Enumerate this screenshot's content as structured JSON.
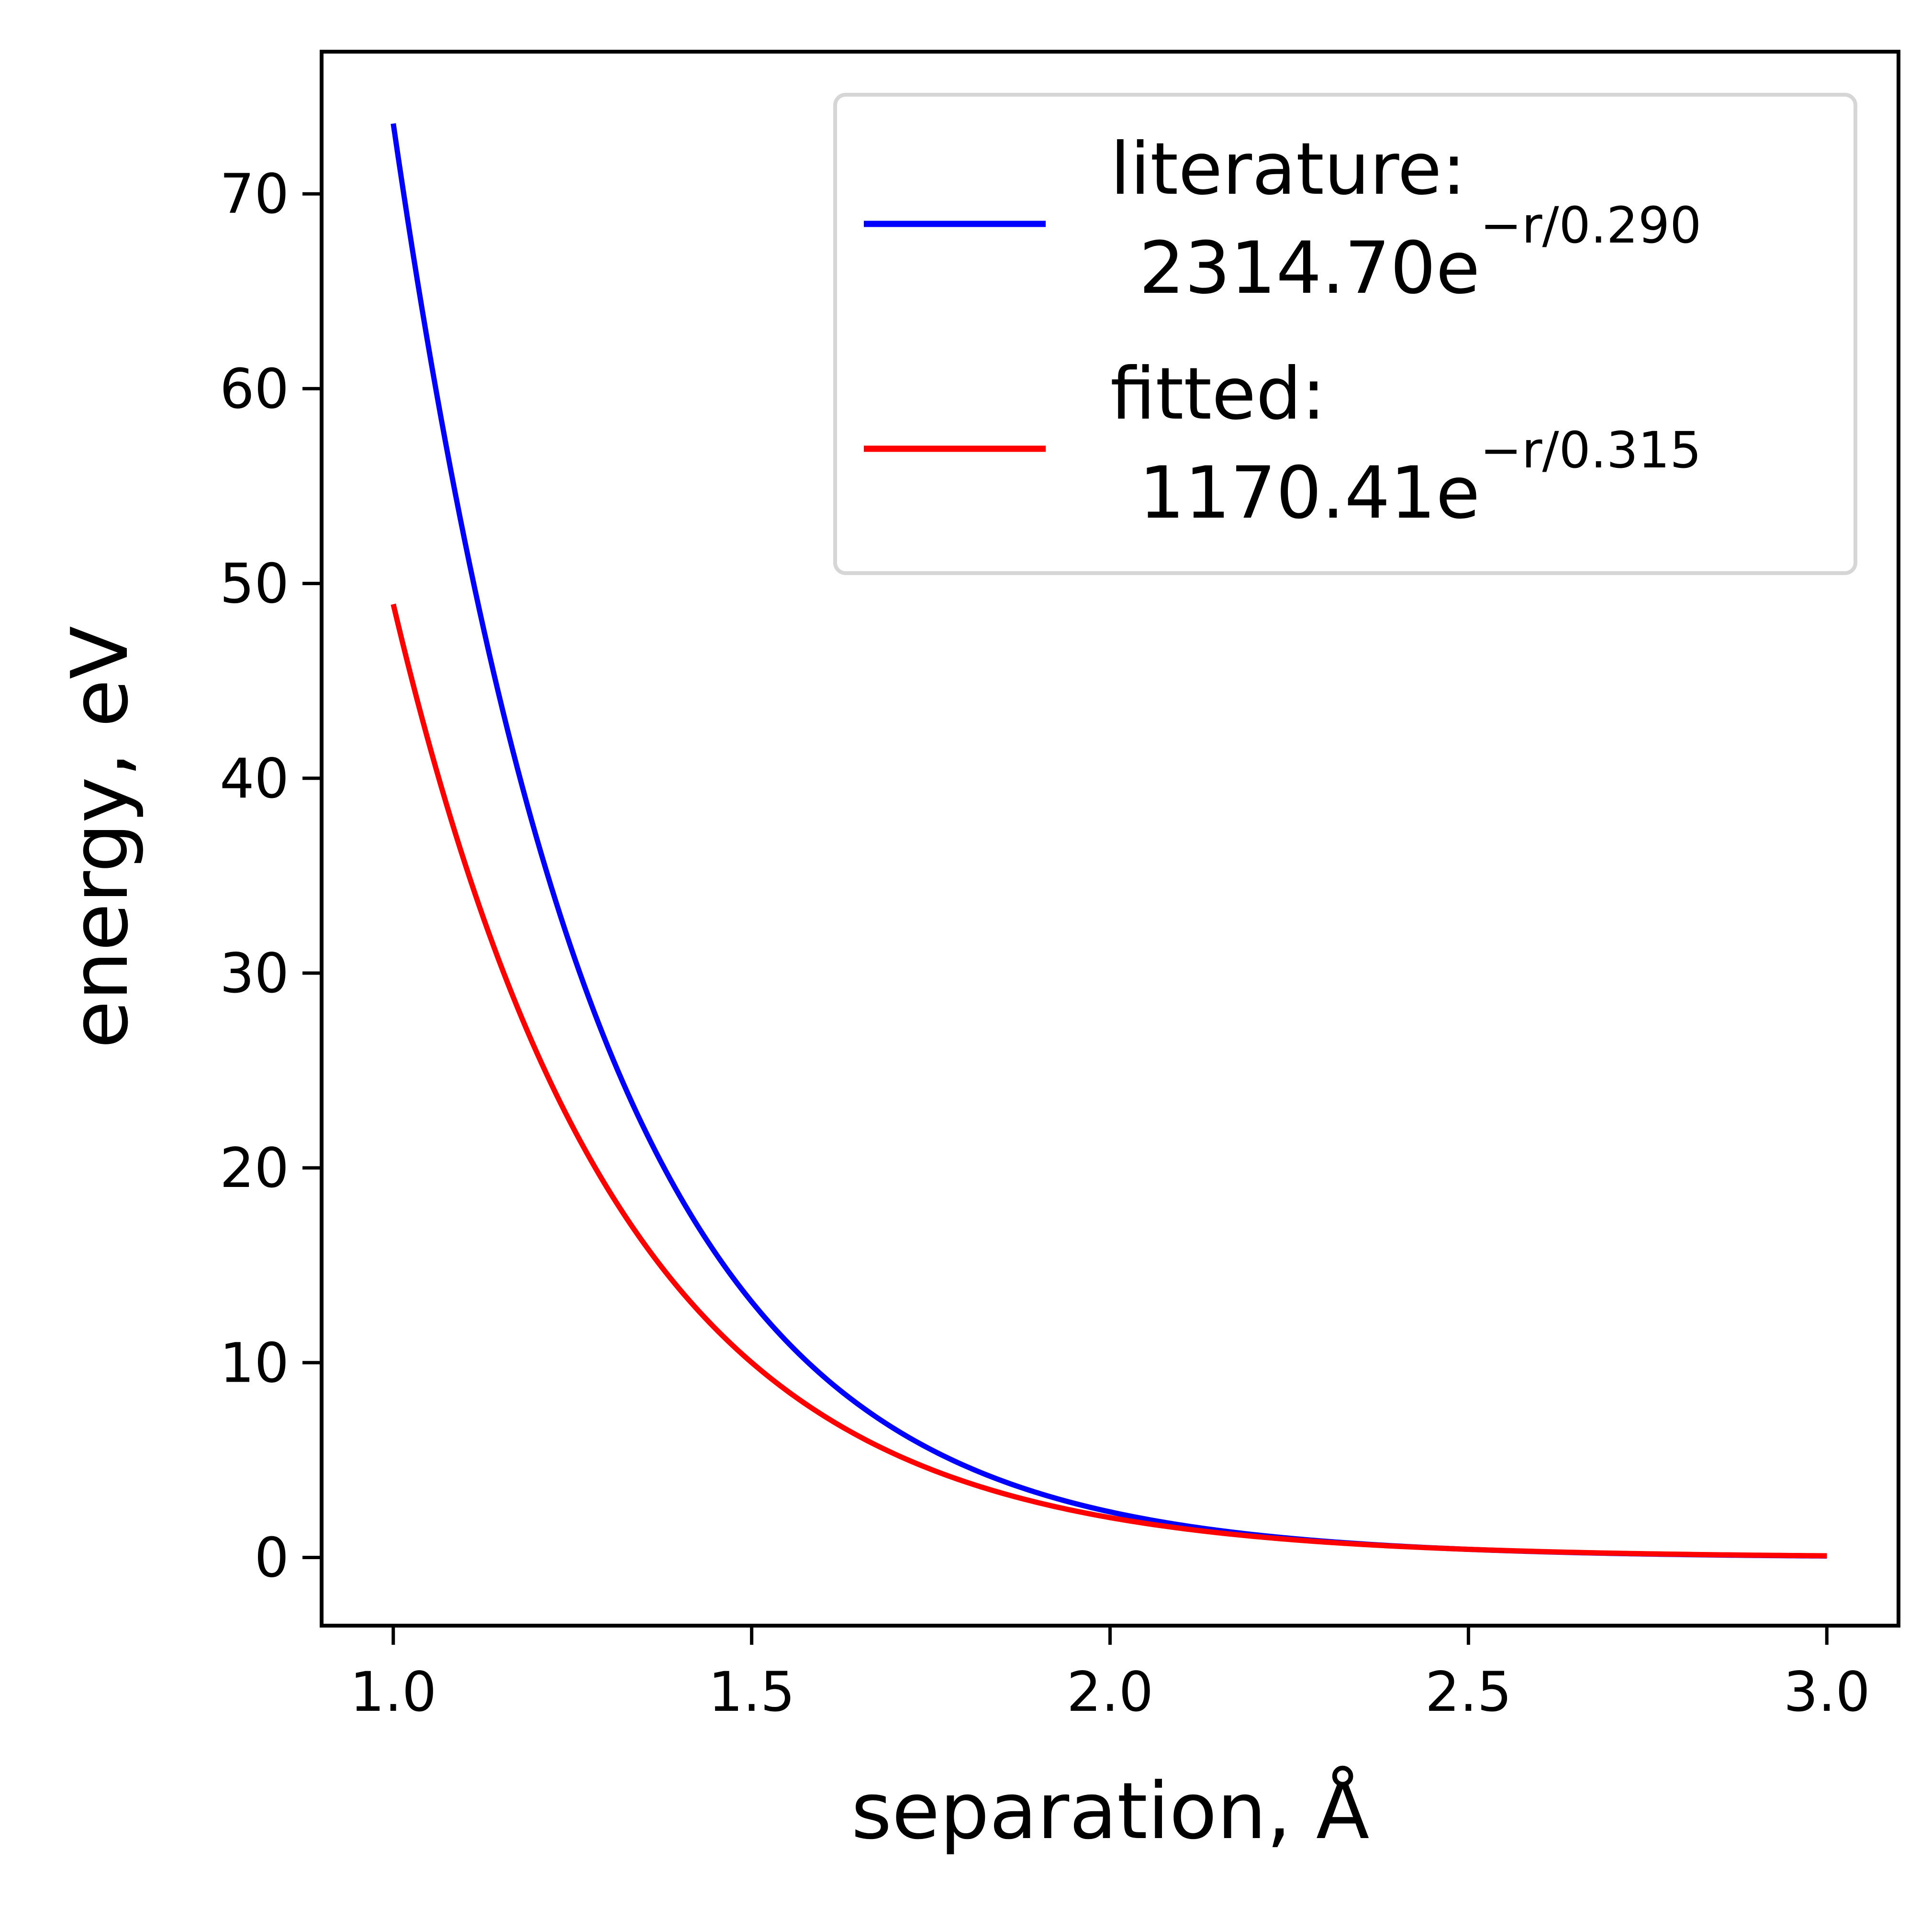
{
  "chart_data": {
    "type": "line",
    "xlabel": "separation, Å",
    "ylabel": "energy, eV",
    "xlim": [
      0.9,
      3.1
    ],
    "ylim": [
      -3.5,
      77.3
    ],
    "xticks": [
      1.0,
      1.5,
      2.0,
      2.5,
      3.0
    ],
    "xtick_labels": [
      "1.0",
      "1.5",
      "2.0",
      "2.5",
      "3.0"
    ],
    "yticks": [
      0,
      10,
      20,
      30,
      40,
      50,
      60,
      70
    ],
    "ytick_labels": [
      "0",
      "10",
      "20",
      "30",
      "40",
      "50",
      "60",
      "70"
    ],
    "grid": false,
    "legend_position": "top-right",
    "series": [
      {
        "name": "literature:",
        "formula_coefficient": "2314.70e",
        "formula_exponent": "−r/0.290",
        "color": "#0000ff",
        "model": "exponential",
        "amplitude": 2314.7,
        "decay": 0.29,
        "x_range": [
          1.0,
          3.0
        ],
        "x": [
          1.0,
          1.25,
          1.5,
          1.75,
          2.0,
          2.25,
          2.5,
          2.75,
          3.0
        ],
        "y": [
          73.5,
          31.9,
          13.8,
          6.0,
          2.6,
          1.1,
          0.5,
          0.2,
          0.1
        ]
      },
      {
        "name": "fitted:",
        "formula_coefficient": "1170.41e",
        "formula_exponent": "−r/0.315",
        "color": "#ff0000",
        "model": "exponential",
        "amplitude": 1170.41,
        "decay": 0.315,
        "x_range": [
          1.0,
          3.0
        ],
        "x": [
          1.0,
          1.25,
          1.5,
          1.75,
          2.0,
          2.25,
          2.5,
          2.75,
          3.0
        ],
        "y": [
          49.0,
          22.0,
          10.0,
          4.5,
          2.0,
          0.9,
          0.4,
          0.2,
          0.1
        ]
      }
    ]
  }
}
